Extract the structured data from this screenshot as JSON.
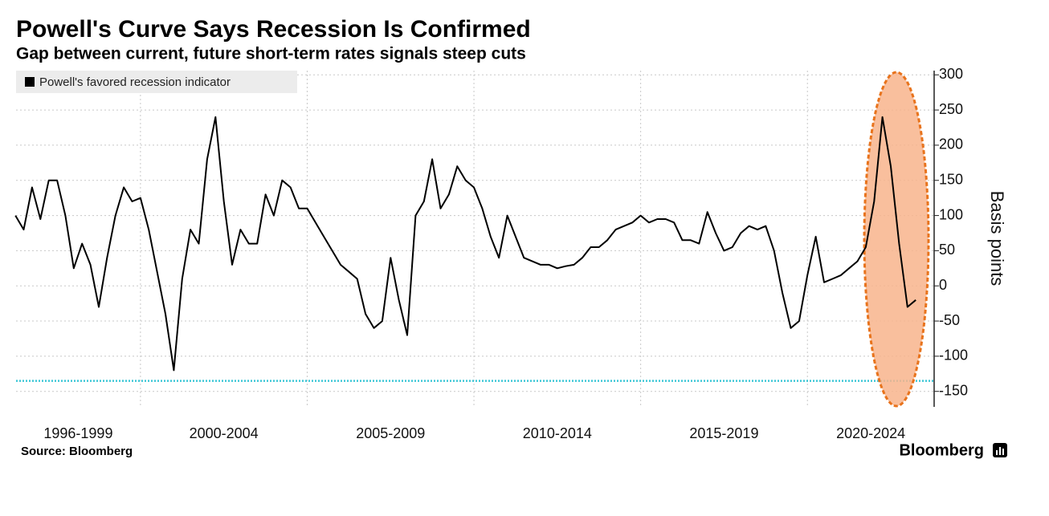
{
  "chart_data": {
    "type": "line",
    "title": "Powell's Curve Says Recession Is Confirmed",
    "subtitle": "Gap between current, future short-term rates signals steep cuts",
    "y_axis_label": "Basis points",
    "source": "Source: Bloomberg",
    "brand": "Bloomberg",
    "legend_position": "upper left",
    "grid": true,
    "xlim": [
      1996.27,
      2023.8
    ],
    "ylim": [
      -172,
      306
    ],
    "yticks": [
      -150,
      -100,
      -50,
      0,
      50,
      100,
      150,
      200,
      250,
      300
    ],
    "periods": [
      {
        "label": "1996-1999",
        "start": 1996.27,
        "end": 2000
      },
      {
        "label": "2000-2004",
        "start": 2000,
        "end": 2005
      },
      {
        "label": "2005-2009",
        "start": 2005,
        "end": 2010
      },
      {
        "label": "2010-2014",
        "start": 2010,
        "end": 2015
      },
      {
        "label": "2015-2019",
        "start": 2015,
        "end": 2020
      },
      {
        "label": "2020-2024",
        "start": 2020,
        "end": 2023.8
      }
    ],
    "reference_line": {
      "value": -135,
      "color": "#3cc7d6"
    },
    "x": [
      1996.25,
      1996.5,
      1996.75,
      1997,
      1997.25,
      1997.5,
      1997.75,
      1998,
      1998.25,
      1998.5,
      1998.75,
      1999,
      1999.25,
      1999.5,
      1999.75,
      2000,
      2000.25,
      2000.5,
      2000.75,
      2001,
      2001.25,
      2001.5,
      2001.75,
      2002,
      2002.25,
      2002.5,
      2002.75,
      2003,
      2003.25,
      2003.5,
      2003.75,
      2004,
      2004.25,
      2004.5,
      2004.75,
      2005,
      2005.25,
      2005.5,
      2005.75,
      2006,
      2006.25,
      2006.5,
      2006.75,
      2007,
      2007.25,
      2007.5,
      2007.75,
      2008,
      2008.25,
      2008.5,
      2008.75,
      2009,
      2009.25,
      2009.5,
      2009.75,
      2010,
      2010.25,
      2010.5,
      2010.75,
      2011,
      2011.25,
      2011.5,
      2011.75,
      2012,
      2012.25,
      2012.5,
      2012.75,
      2013,
      2013.25,
      2013.5,
      2013.75,
      2014,
      2014.25,
      2014.5,
      2014.75,
      2015,
      2015.25,
      2015.5,
      2015.75,
      2016,
      2016.25,
      2016.5,
      2016.75,
      2017,
      2017.25,
      2017.5,
      2017.75,
      2018,
      2018.25,
      2018.5,
      2018.75,
      2019,
      2019.25,
      2019.5,
      2019.75,
      2020,
      2020.25,
      2020.5,
      2020.75,
      2021,
      2021.25,
      2021.5,
      2021.75,
      2022,
      2022.25,
      2022.5,
      2022.75,
      2023,
      2023.25
    ],
    "series": [
      {
        "name": "Powell's favored recession indicator",
        "color": "#000000",
        "values": [
          100,
          80,
          140,
          95,
          150,
          150,
          100,
          25,
          60,
          30,
          -30,
          40,
          100,
          140,
          120,
          125,
          80,
          20,
          -40,
          -120,
          10,
          80,
          60,
          180,
          240,
          120,
          30,
          80,
          60,
          60,
          130,
          100,
          150,
          140,
          110,
          110,
          90,
          70,
          50,
          30,
          20,
          10,
          -40,
          -60,
          -50,
          40,
          -20,
          -70,
          100,
          120,
          180,
          110,
          130,
          170,
          150,
          140,
          110,
          70,
          40,
          100,
          70,
          40,
          35,
          30,
          30,
          25,
          28,
          30,
          40,
          55,
          55,
          65,
          80,
          85,
          90,
          100,
          90,
          95,
          95,
          90,
          65,
          65,
          60,
          105,
          75,
          50,
          55,
          75,
          85,
          80,
          85,
          50,
          -10,
          -60,
          -50,
          15,
          70,
          5,
          10,
          15,
          25,
          35,
          55,
          120,
          240,
          170,
          60,
          -30,
          -20
        ]
      }
    ]
  }
}
